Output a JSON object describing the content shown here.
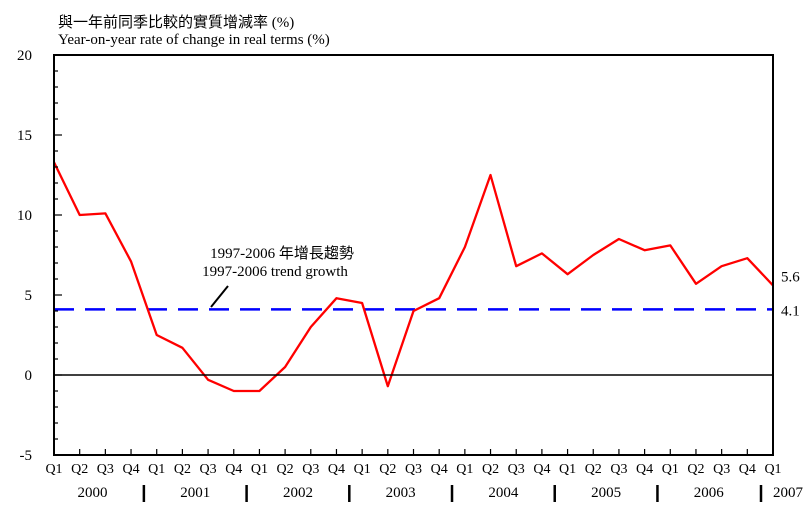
{
  "chart_data": {
    "type": "line",
    "ylabel_zh": "與一年前同季比較的實質增減率 (%)",
    "ylabel": "Year-on-year rate of change in real terms (%)",
    "ylim": [
      -5,
      20
    ],
    "yticks": [
      -5,
      0,
      5,
      10,
      15,
      20
    ],
    "quarters": [
      "Q1",
      "Q2",
      "Q3",
      "Q4",
      "Q1",
      "Q2",
      "Q3",
      "Q4",
      "Q1",
      "Q2",
      "Q3",
      "Q4",
      "Q1",
      "Q2",
      "Q3",
      "Q4",
      "Q1",
      "Q2",
      "Q3",
      "Q4",
      "Q1",
      "Q2",
      "Q3",
      "Q4",
      "Q1",
      "Q2",
      "Q3",
      "Q4",
      "Q1"
    ],
    "years": [
      "2000",
      "2001",
      "2002",
      "2003",
      "2004",
      "2005",
      "2006",
      "2007"
    ],
    "series": [
      {
        "color": "#ff0000",
        "values": [
          13.3,
          10.0,
          10.1,
          7.1,
          2.5,
          1.7,
          -0.3,
          -1.0,
          -1.0,
          0.5,
          3.0,
          4.8,
          4.5,
          -0.7,
          4.0,
          4.8,
          8.0,
          12.5,
          6.8,
          7.6,
          6.3,
          7.5,
          8.5,
          7.8,
          8.1,
          5.7,
          6.8,
          7.3,
          5.6
        ]
      }
    ],
    "trend": {
      "value": 4.1,
      "color": "#0000ff",
      "label_zh": "1997-2006 年增長趨勢",
      "label_en": "1997-2006  trend growth"
    },
    "end_label": "5.6",
    "trend_end_label": "4.1"
  }
}
